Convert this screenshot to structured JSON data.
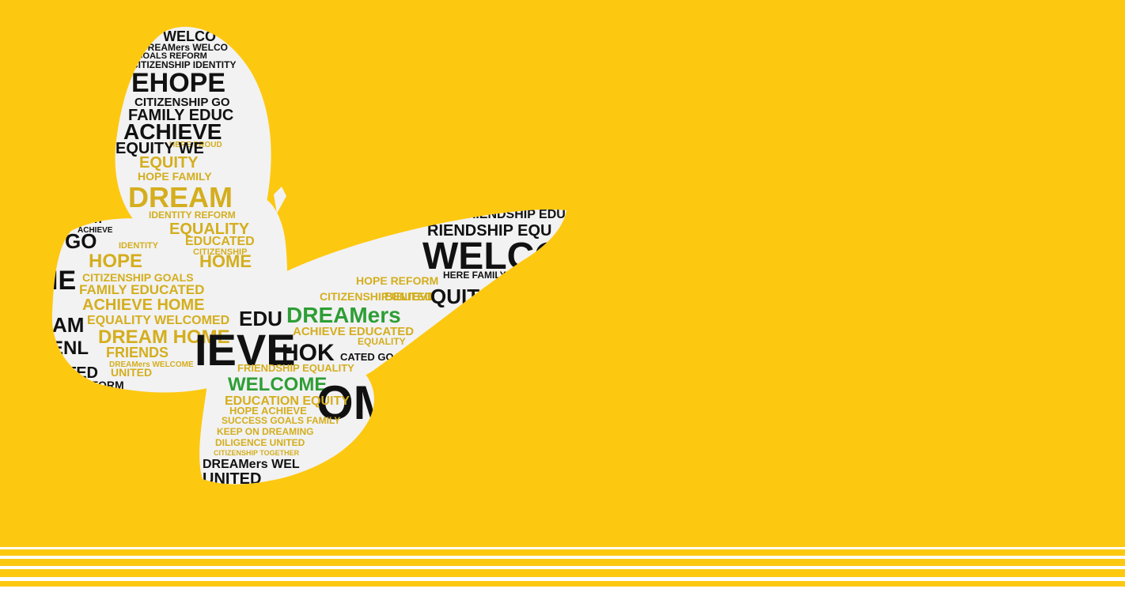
{
  "artwork": {
    "background_color": "#FDC810",
    "butterfly_fill": "#F2F2F2",
    "ink_color": "#111111",
    "gold_color": "#D4AE1E",
    "green_color": "#2E9E36",
    "words": {
      "w_welco_top": "WELCO",
      "w_dreamers_welco_top": "DREAMers WELCO",
      "w_goals_reform": "GOALS REFORM",
      "w_citizenship_identity": "CITIZENSHIP IDENTITY",
      "w_hope_big": "EHOPE",
      "w_citizenship_go": "CITIZENSHIP GO",
      "w_family_educ": "FAMILY EDUC",
      "w_achieve_big": "ACHIEVE",
      "w_here_proud": "HERE PROUD",
      "w_equity_we": "EQUITY WE",
      "w_equity_gold": "EQUITY",
      "w_hope_family": "HOPE FAMILY",
      "w_dream_big": "DREAM",
      "w_identity_reform": "IDENTITY REFORM",
      "w_stay": "STAY",
      "w_achieve_small": "ACHIEVE",
      "w_equality": "EQUALITY",
      "w_educated": "EDUCATED",
      "w_identity": "IDENTITY",
      "w_citizenship": "CITIZENSHIP",
      "w_hope_mid": "HOPE",
      "w_home": "HOME",
      "w_citizenship_goals": "CITIZENSHIP GOALS",
      "w_family_educated": "FAMILY EDUCATED",
      "w_achieve_home": "ACHIEVE HOME",
      "w_equality_welcomed": "EQUALITY WELCOMED",
      "w_dream_home": "DREAM HOME",
      "w_friends": "FRIENDS",
      "w_dreamers_welcome_small": "DREAMers WELCOME",
      "w_united": "UNITED",
      "w_reform": "REFORM",
      "w_friendship_educ": "FRIENDSHIP EDUC",
      "w_riendship_equ": "RIENDSHIP EQU",
      "w_welco_big": "WELCO",
      "w_hope_reform": "HOPE REFORM",
      "w_here_family": "HERE FAMILY",
      "w_citizenship_united": "CITIZENSHIP UNITED",
      "w_believe": "BELIEVE",
      "w_quit": "QUIT",
      "w_dreamers_green": "DREAMers",
      "w_achieve_educated": "ACHIEVE EDUCATED",
      "w_equality_small": "EQUALITY",
      "w_educated_goals": "CATED GOALS",
      "w_edu": "EDU",
      "w_friendship_equality": "FRIENDSHIP EQUALITY",
      "w_welcome_green": "WELCOME",
      "w_education_equity": "EDUCATION EQUITY",
      "w_achieve_family": "HOPE ACHIEVE",
      "w_success_goals": "SUCCESS GOALS FAMILY",
      "w_keep_on_dreaming": "KEEP ON DREAMING",
      "w_diligence_united": "DILIGENCE UNITED",
      "w_citizenship_together": "CITIZENSHIP TOGETHER",
      "w_dreamers_wel_bottom": "DREAMers WEL",
      "w_united_bottom": "UNITED",
      "w_left_ie": "IE",
      "w_left_go": "GO",
      "w_left_am": "AM",
      "w_left_enl": "ENL",
      "w_left_ted": "TED",
      "w_big_ieve": "IEVE",
      "w_big_hok": "HOK",
      "w_big_om": "OM"
    }
  }
}
